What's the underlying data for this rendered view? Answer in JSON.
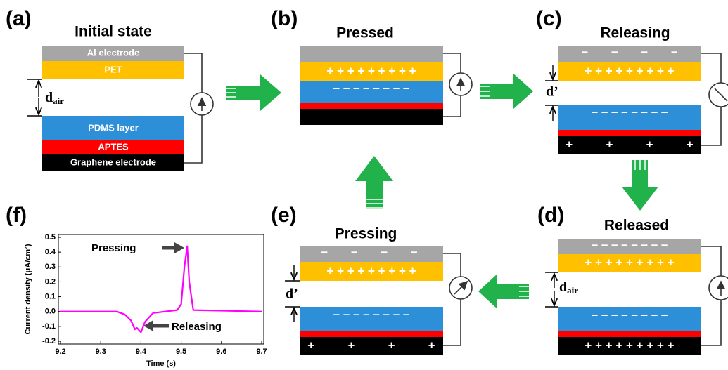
{
  "panels": [
    {
      "label": "(a)",
      "title": "Initial state",
      "layers": {
        "al": "Al electrode",
        "pet": "PET",
        "pdms": "PDMS layer",
        "aptes": "APTES",
        "graphene": "Graphene electrode"
      },
      "gap": {
        "main": "d",
        "sub": "air"
      }
    },
    {
      "label": "(b)",
      "title": "Pressed",
      "signs": {
        "pet": "+ + + + + + + + +",
        "pdms": "– – – – – – – –"
      }
    },
    {
      "label": "(c)",
      "title": "Releasing",
      "gap": "d’",
      "signs": {
        "al": "–       –       –       –",
        "pet": "+ + + + + + + + +",
        "pdms": "– – – – – – – –",
        "graphene": "+          +          +          +"
      }
    },
    {
      "label": "(d)",
      "title": "Released",
      "gap": {
        "main": "d",
        "sub": "air"
      },
      "signs": {
        "al": "– – – – – – – –",
        "pet": "+ + + + + + + + +",
        "pdms": "– – – – – – – –",
        "graphene": "+ + + + + + + + +"
      }
    },
    {
      "label": "(e)",
      "title": "Pressing",
      "gap": "d’",
      "signs": {
        "al": "–       –       –       –",
        "pet": "+ + + + + + + + +",
        "pdms": "– – – – – – – –",
        "graphene": "+          +          +          +"
      }
    }
  ],
  "chart_data": {
    "type": "line",
    "label": "(f)",
    "xlabel": "Time (s)",
    "ylabel": "Current density (μA/cm²)",
    "x": [
      9.2,
      9.34,
      9.36,
      9.375,
      9.385,
      9.39,
      9.4,
      9.41,
      9.43,
      9.49,
      9.5,
      9.508,
      9.515,
      9.52,
      9.53,
      9.7
    ],
    "series": [
      {
        "color": "#ff00ff",
        "values": [
          0,
          0,
          -0.02,
          -0.06,
          -0.12,
          -0.11,
          -0.14,
          -0.07,
          -0.01,
          0.01,
          0.05,
          0.3,
          0.44,
          0.2,
          0.01,
          0
        ]
      }
    ],
    "xlim": [
      9.2,
      9.7
    ],
    "ylim": [
      -0.2,
      0.5
    ],
    "xticks": [
      9.2,
      9.3,
      9.4,
      9.5,
      9.6,
      9.7
    ],
    "yticks": [
      -0.2,
      -0.1,
      {
        "value": 0,
        "label": "0.0"
      },
      0.1,
      0.2,
      0.3,
      0.4,
      0.5
    ],
    "annotations": [
      "Pressing",
      "Releasing"
    ]
  }
}
